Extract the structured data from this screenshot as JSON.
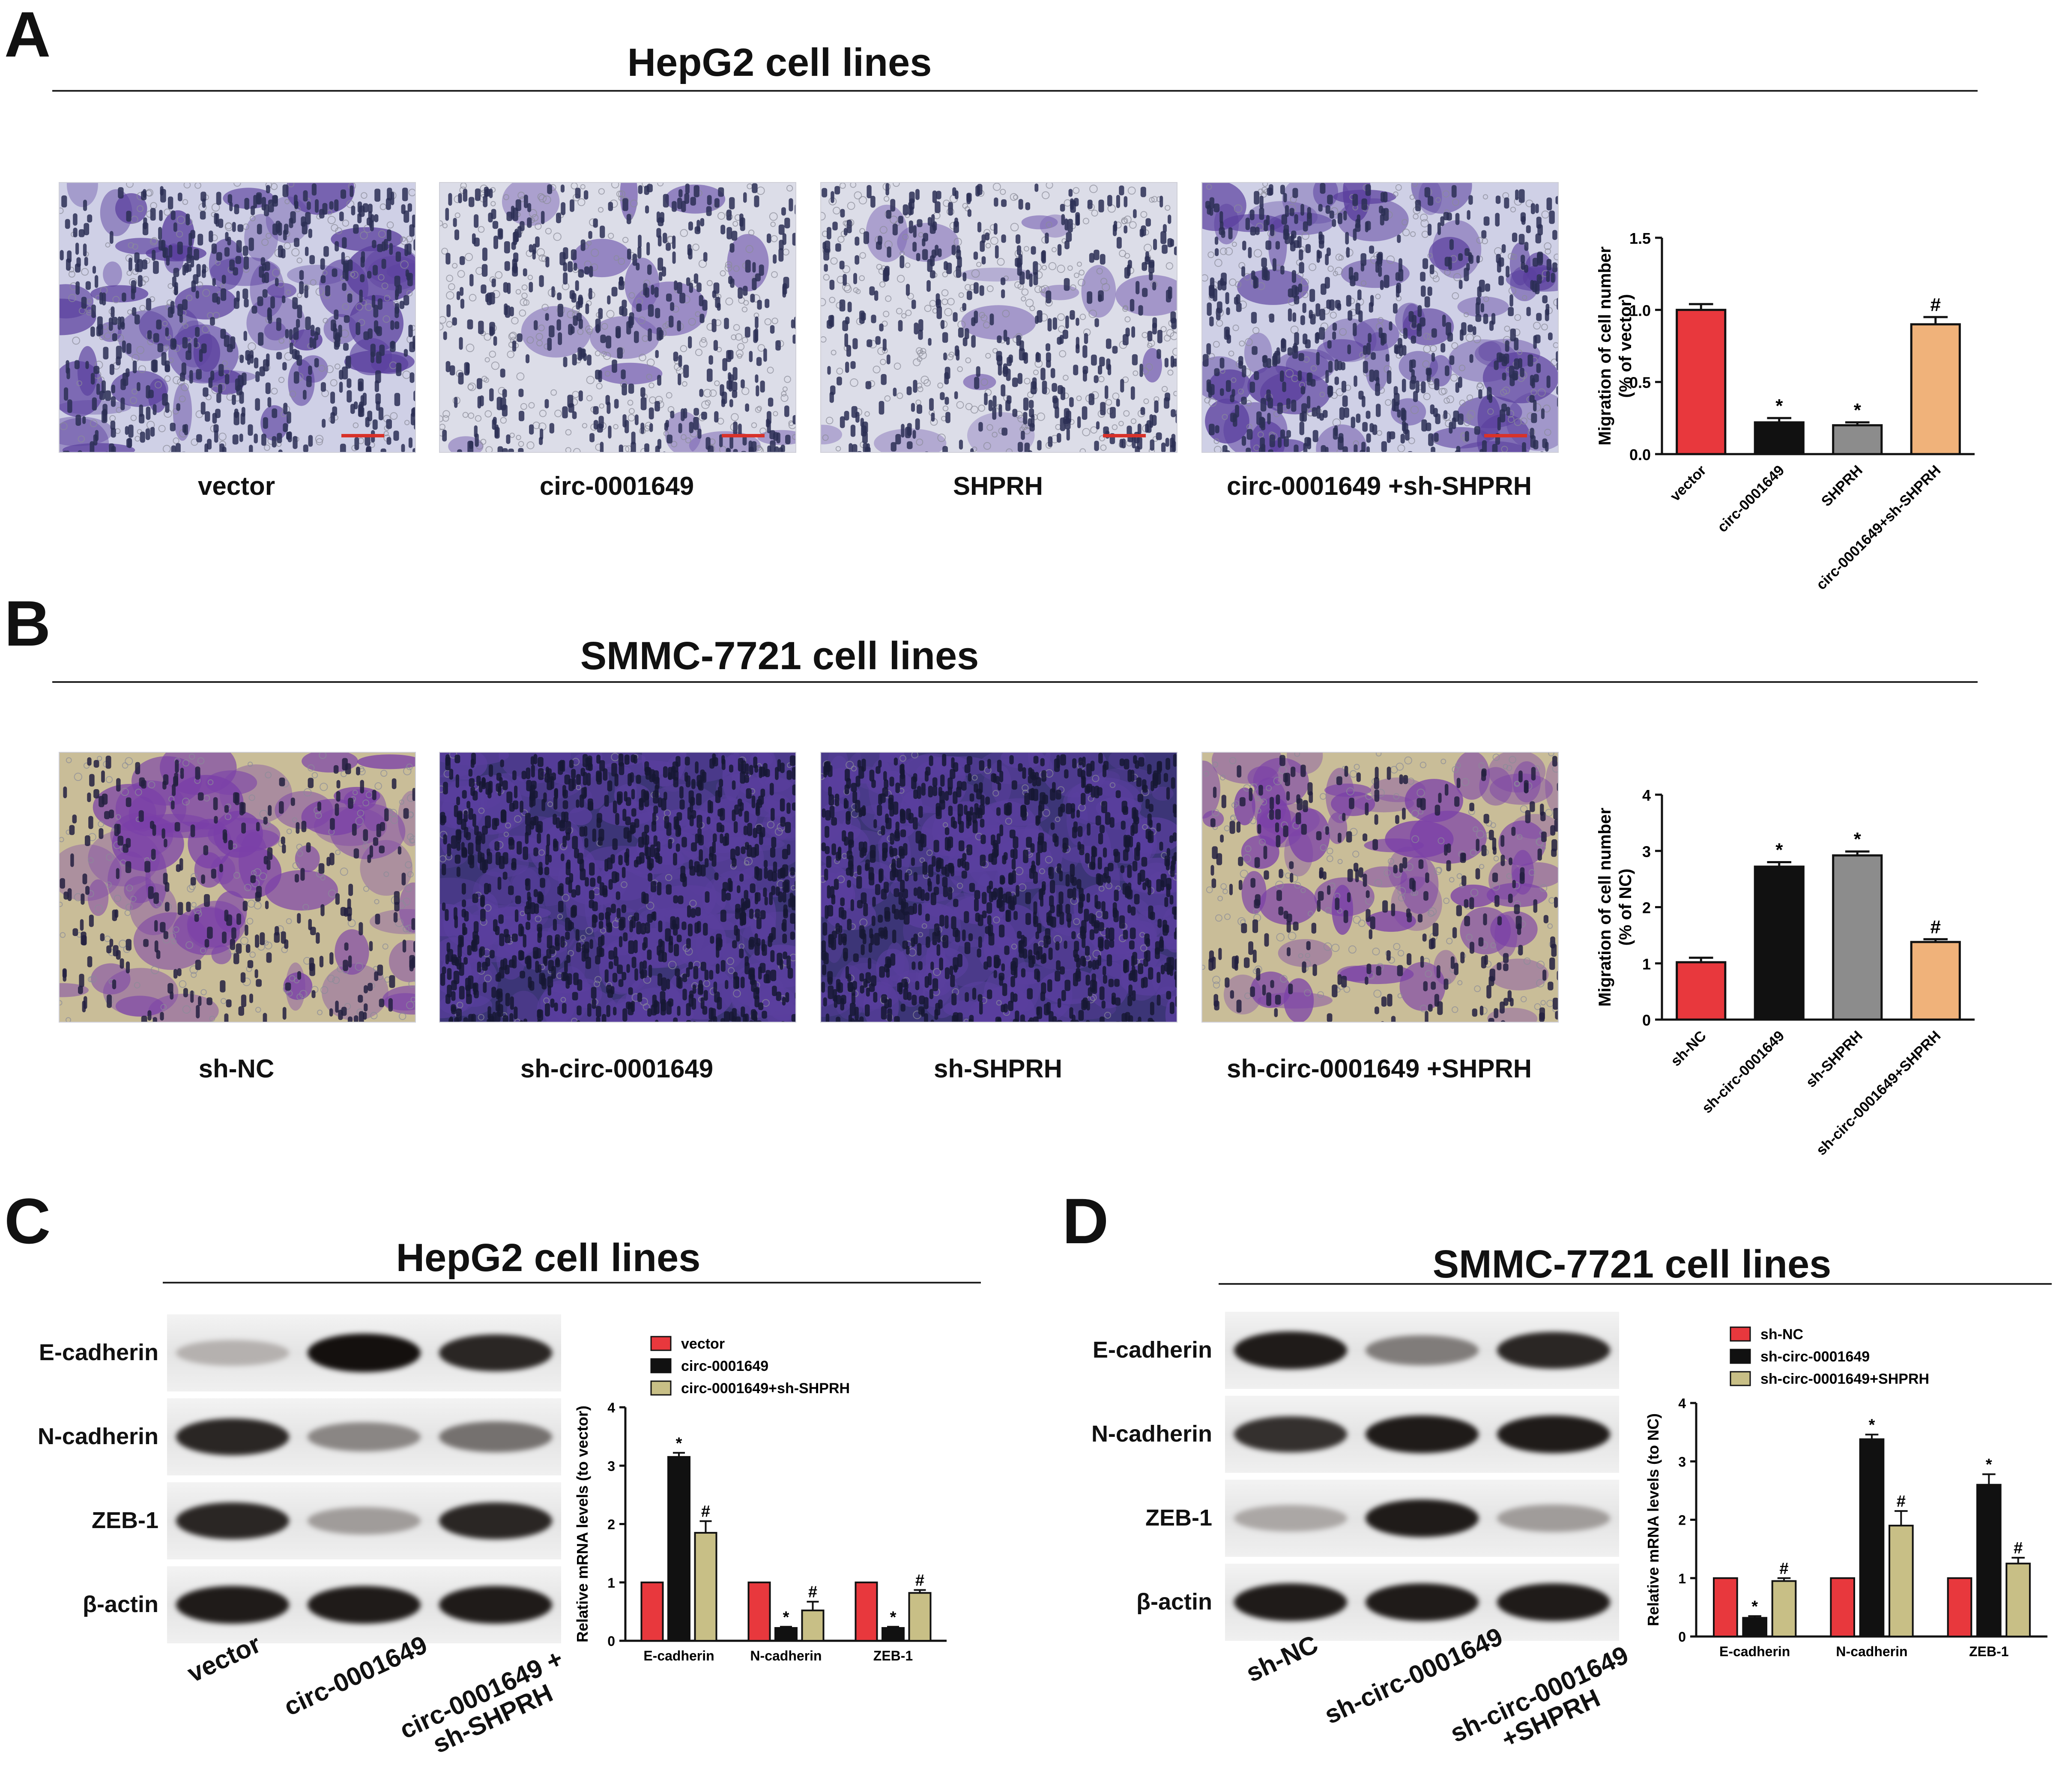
{
  "panels": {
    "A": {
      "letter": "A",
      "title": "HepG2 cell lines",
      "images": [
        {
          "label": "vector",
          "style": "light"
        },
        {
          "label": "circ-0001649",
          "style": "sparse"
        },
        {
          "label": "SHPRH",
          "style": "sparse"
        },
        {
          "label": "circ-0001649 +sh-SHPRH",
          "style": "light"
        }
      ]
    },
    "B": {
      "letter": "B",
      "title": "SMMC-7721 cell lines",
      "images": [
        {
          "label": "sh-NC",
          "style": "beige"
        },
        {
          "label": "sh-circ-0001649",
          "style": "dense"
        },
        {
          "label": "sh-SHPRH",
          "style": "dense"
        },
        {
          "label": "sh-circ-0001649 +SHPRH",
          "style": "beige"
        }
      ]
    },
    "C": {
      "letter": "C",
      "title": "HepG2 cell lines",
      "blot_rows": [
        "E-cadherin",
        "N-cadherin",
        "ZEB-1",
        "β-actin"
      ],
      "lanes": [
        "vector",
        "circ-0001649",
        "circ-0001649 + sh-SHPRH"
      ],
      "band_intensity": [
        [
          0.25,
          1.0,
          0.9
        ],
        [
          0.9,
          0.45,
          0.55
        ],
        [
          0.9,
          0.35,
          0.9
        ],
        [
          0.95,
          0.95,
          0.95
        ]
      ]
    },
    "D": {
      "letter": "D",
      "title": "SMMC-7721 cell lines",
      "blot_rows": [
        "E-cadherin",
        "N-cadherin",
        "ZEB-1",
        "β-actin"
      ],
      "lanes": [
        "sh-NC",
        "sh-circ-0001649",
        "sh-circ-0001649 +SHPRH"
      ],
      "band_intensity": [
        [
          0.95,
          0.5,
          0.9
        ],
        [
          0.85,
          0.95,
          0.95
        ],
        [
          0.3,
          0.95,
          0.35
        ],
        [
          0.95,
          0.95,
          0.95
        ]
      ]
    }
  },
  "chart_data": [
    {
      "type": "bar",
      "panel": "A",
      "categories": [
        "vector",
        "circ-0001649",
        "SHPRH",
        "circ-0001649+sh-SHPRH"
      ],
      "values": [
        1.0,
        0.22,
        0.2,
        0.9
      ],
      "errors": [
        0.04,
        0.03,
        0.02,
        0.05
      ],
      "markers": [
        "",
        "*",
        "*",
        "#"
      ],
      "colors": [
        "#e8383d",
        "#111111",
        "#8c8c8c",
        "#f0b27a"
      ],
      "ylabel": "Migration of cell number\n(% of vector)",
      "ylim": [
        0,
        1.5
      ],
      "yticks": [
        "0.0",
        "0.5",
        "1.0",
        "1.5"
      ],
      "ytick_values": [
        0,
        0.5,
        1.0,
        1.5
      ]
    },
    {
      "type": "bar",
      "panel": "B",
      "categories": [
        "sh-NC",
        "sh-circ-0001649",
        "sh-SHPRH",
        "sh-circ-0001649+SHPRH"
      ],
      "values": [
        1.02,
        2.72,
        2.92,
        1.38
      ],
      "errors": [
        0.08,
        0.08,
        0.07,
        0.05
      ],
      "markers": [
        "",
        "*",
        "*",
        "#"
      ],
      "colors": [
        "#e8383d",
        "#111111",
        "#8c8c8c",
        "#f0b27a"
      ],
      "ylabel": "Migration of cell number\n(% of NC)",
      "ylim": [
        0,
        4
      ],
      "yticks": [
        "0",
        "1",
        "2",
        "3",
        "4"
      ],
      "ytick_values": [
        0,
        1,
        2,
        3,
        4
      ]
    },
    {
      "type": "bar",
      "panel": "C",
      "categories": [
        "E-cadherin",
        "N-cadherin",
        "ZEB-1"
      ],
      "series": [
        {
          "name": "vector",
          "color": "#e8383d",
          "values": [
            1.0,
            1.0,
            1.0
          ],
          "errors": [
            0,
            0,
            0
          ],
          "markers": [
            "",
            "",
            ""
          ]
        },
        {
          "name": "circ-0001649",
          "color": "#111111",
          "values": [
            3.15,
            0.22,
            0.22
          ],
          "errors": [
            0.07,
            0.02,
            0.02
          ],
          "markers": [
            "*",
            "*",
            "*"
          ]
        },
        {
          "name": "circ-0001649+sh-SHPRH",
          "color": "#c8bf86",
          "values": [
            1.85,
            0.52,
            0.82
          ],
          "errors": [
            0.2,
            0.15,
            0.05
          ],
          "markers": [
            "#",
            "#",
            "#"
          ]
        }
      ],
      "ylabel": "Relative mRNA levels (to vector)",
      "ylim": [
        0,
        4
      ],
      "yticks": [
        "0",
        "1",
        "2",
        "3",
        "4"
      ],
      "ytick_values": [
        0,
        1,
        2,
        3,
        4
      ],
      "legend": "top"
    },
    {
      "type": "bar",
      "panel": "D",
      "categories": [
        "E-cadherin",
        "N-cadherin",
        "ZEB-1"
      ],
      "series": [
        {
          "name": "sh-NC",
          "color": "#e8383d",
          "values": [
            1.0,
            1.0,
            1.0
          ],
          "errors": [
            0,
            0,
            0
          ],
          "markers": [
            "",
            "",
            ""
          ]
        },
        {
          "name": "sh-circ-0001649",
          "color": "#111111",
          "values": [
            0.32,
            3.38,
            2.6
          ],
          "errors": [
            0.03,
            0.08,
            0.18
          ],
          "markers": [
            "*",
            "*",
            "*"
          ]
        },
        {
          "name": "sh-circ-0001649+SHPRH",
          "color": "#c8bf86",
          "values": [
            0.95,
            1.9,
            1.25
          ],
          "errors": [
            0.05,
            0.25,
            0.1
          ],
          "markers": [
            "#",
            "#",
            "#"
          ]
        }
      ],
      "ylabel": "Relative mRNA levels (to NC)",
      "ylim": [
        0,
        4
      ],
      "yticks": [
        "0",
        "1",
        "2",
        "3",
        "4"
      ],
      "ytick_values": [
        0,
        1,
        2,
        3,
        4
      ],
      "legend": "top"
    }
  ]
}
